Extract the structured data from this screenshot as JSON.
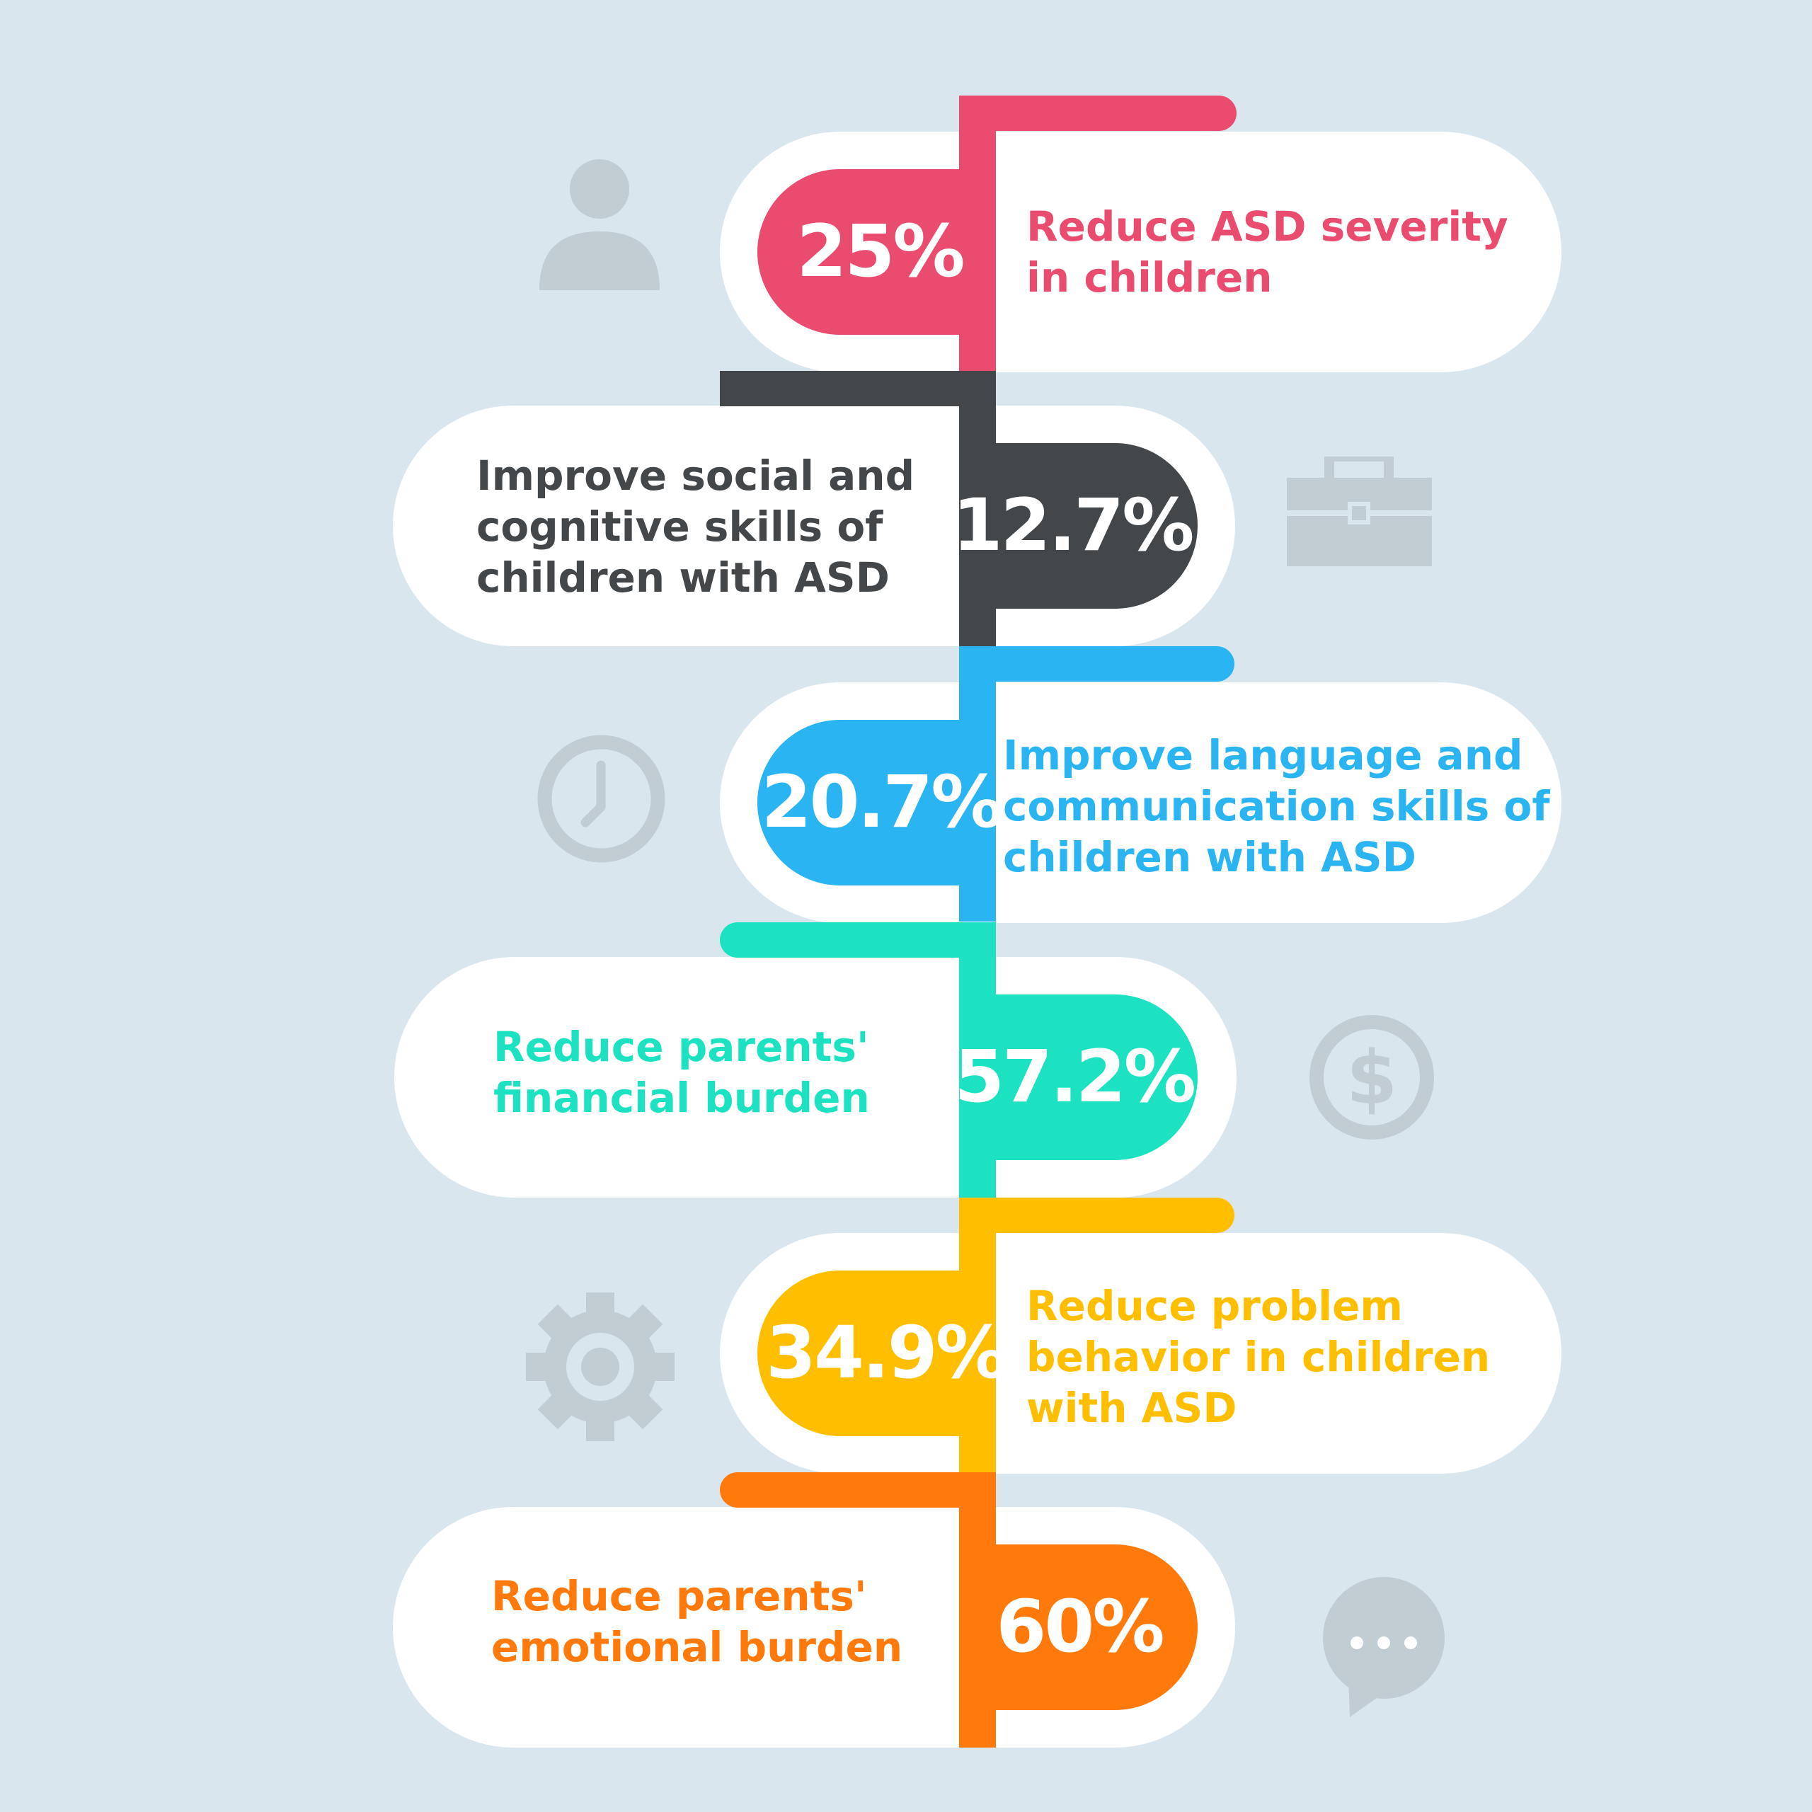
{
  "colors": {
    "background": "#d9e6ee",
    "icon": "#c1ccd3",
    "pink": "#ea4c70",
    "dark": "#43474a",
    "blue": "#2bb4f2",
    "teal": "#1ce2c1",
    "yellow": "#ffbf00",
    "orange": "#ff7a0a"
  },
  "steps": [
    {
      "value": "25%",
      "label_lines": [
        "Reduce ASD severity",
        "in children"
      ],
      "color": "pink",
      "side": "right",
      "icon": "user-icon"
    },
    {
      "value": "12.7%",
      "label_lines": [
        "Improve social and",
        "cognitive skills of",
        "children with ASD"
      ],
      "color": "dark",
      "side": "left",
      "icon": "briefcase-icon"
    },
    {
      "value": "20.7%",
      "label_lines": [
        "Improve language and",
        "communication skills of",
        "children with ASD"
      ],
      "color": "blue",
      "side": "right",
      "icon": "clock-icon"
    },
    {
      "value": "57.2%",
      "label_lines": [
        "Reduce parents'",
        "financial burden"
      ],
      "color": "teal",
      "side": "left",
      "icon": "dollar-icon"
    },
    {
      "value": "34.9%",
      "label_lines": [
        "Reduce problem",
        "behavior in children",
        "with ASD"
      ],
      "color": "yellow",
      "side": "right",
      "icon": "gear-icon"
    },
    {
      "value": "60%",
      "label_lines": [
        "Reduce parents'",
        "emotional burden"
      ],
      "color": "orange",
      "side": "left",
      "icon": "chat-icon"
    }
  ]
}
